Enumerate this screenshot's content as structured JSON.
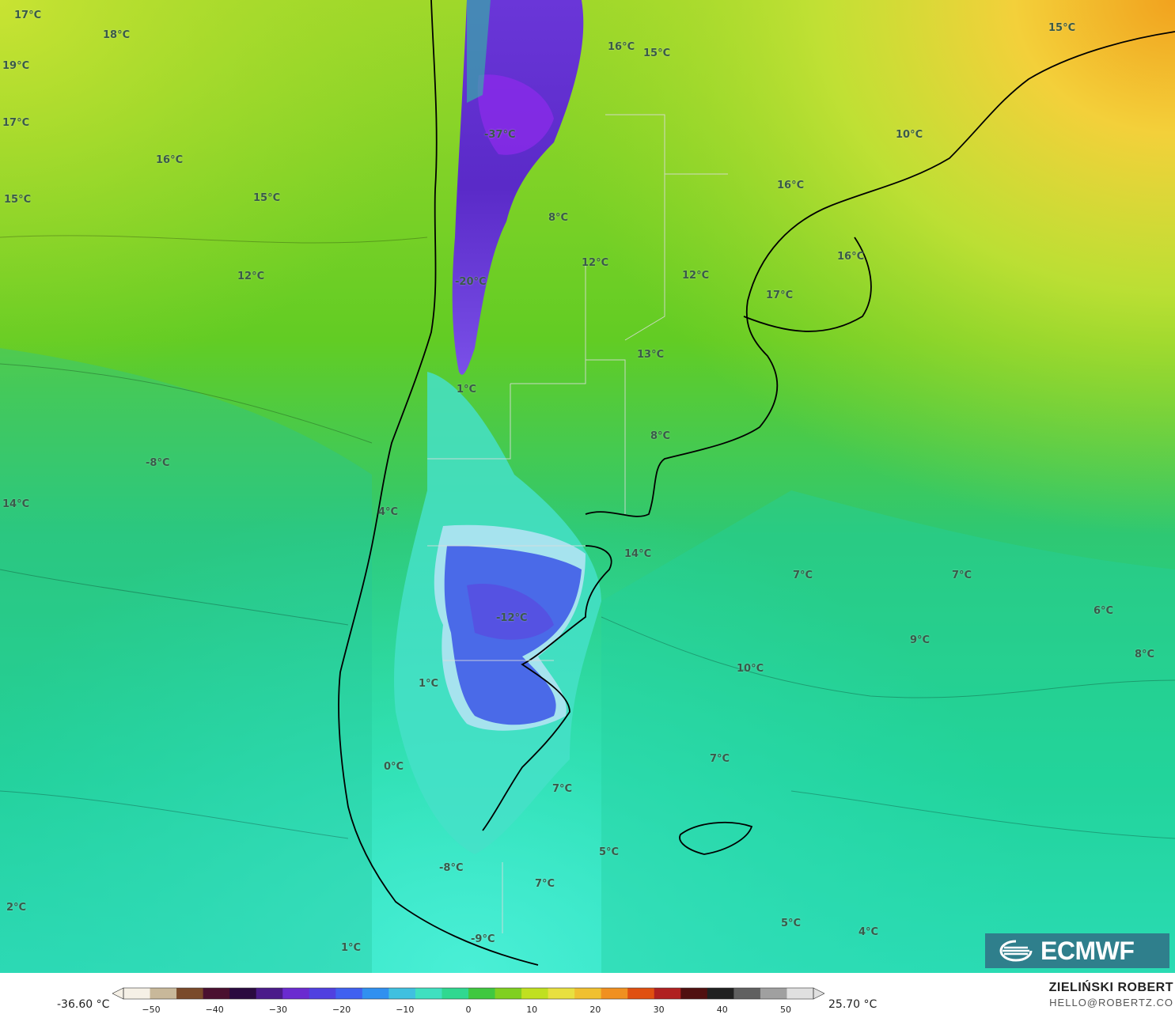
{
  "map": {
    "labels": [
      {
        "text": "17°C"
      },
      {
        "text": "18°C"
      },
      {
        "text": "19°C"
      },
      {
        "text": "17°C"
      },
      {
        "text": "16°C"
      },
      {
        "text": "15°C"
      },
      {
        "text": "12°C"
      },
      {
        "text": "-37°C"
      },
      {
        "text": "16°C"
      },
      {
        "text": "15°C"
      },
      {
        "text": "15°C"
      },
      {
        "text": "10°C"
      },
      {
        "text": "16°C"
      },
      {
        "text": "15°C"
      },
      {
        "text": "8°C"
      },
      {
        "text": "12°C"
      },
      {
        "text": "12°C"
      },
      {
        "text": "16°C"
      },
      {
        "text": "17°C"
      },
      {
        "text": "-20°C"
      },
      {
        "text": "13°C"
      },
      {
        "text": "1°C"
      },
      {
        "text": "8°C"
      },
      {
        "text": "-8°C"
      },
      {
        "text": "14°C"
      },
      {
        "text": "4°C"
      },
      {
        "text": "14°C"
      },
      {
        "text": "7°C"
      },
      {
        "text": "7°C"
      },
      {
        "text": "6°C"
      },
      {
        "text": "-12°C"
      },
      {
        "text": "9°C"
      },
      {
        "text": "8°C"
      },
      {
        "text": "10°C"
      },
      {
        "text": "1°C"
      },
      {
        "text": "7°C"
      },
      {
        "text": "0°C"
      },
      {
        "text": "7°C"
      },
      {
        "text": "5°C"
      },
      {
        "text": "-8°C"
      },
      {
        "text": "7°C"
      },
      {
        "text": "2°C"
      },
      {
        "text": "5°C"
      },
      {
        "text": "4°C"
      },
      {
        "text": "1°C"
      },
      {
        "text": "-9°C"
      }
    ]
  },
  "logo": {
    "text": "ECMWF"
  },
  "colorbar": {
    "min_label": "-36.60 °C",
    "max_label": "25.70 °C",
    "ticks": [
      "−50",
      "−40",
      "−30",
      "−20",
      "−10",
      "0",
      "10",
      "20",
      "30",
      "40",
      "50"
    ],
    "colors": [
      "#f5f0e6",
      "#c8b89a",
      "#7a4a2a",
      "#4a1030",
      "#2a0a40",
      "#4a1a8a",
      "#6a2ad0",
      "#5040e0",
      "#4060f0",
      "#3090f0",
      "#40c0e0",
      "#40e0c0",
      "#30d890",
      "#40c840",
      "#80d020",
      "#c0e020",
      "#e8e040",
      "#f0c030",
      "#f09020",
      "#e05010",
      "#b02020",
      "#501010",
      "#202020",
      "#606060",
      "#a0a0a0",
      "#e0e0e0"
    ]
  },
  "author": {
    "name": "ZIELIŃSKI ROBERT",
    "email": "HELLO@ROBERTZ.CO"
  }
}
